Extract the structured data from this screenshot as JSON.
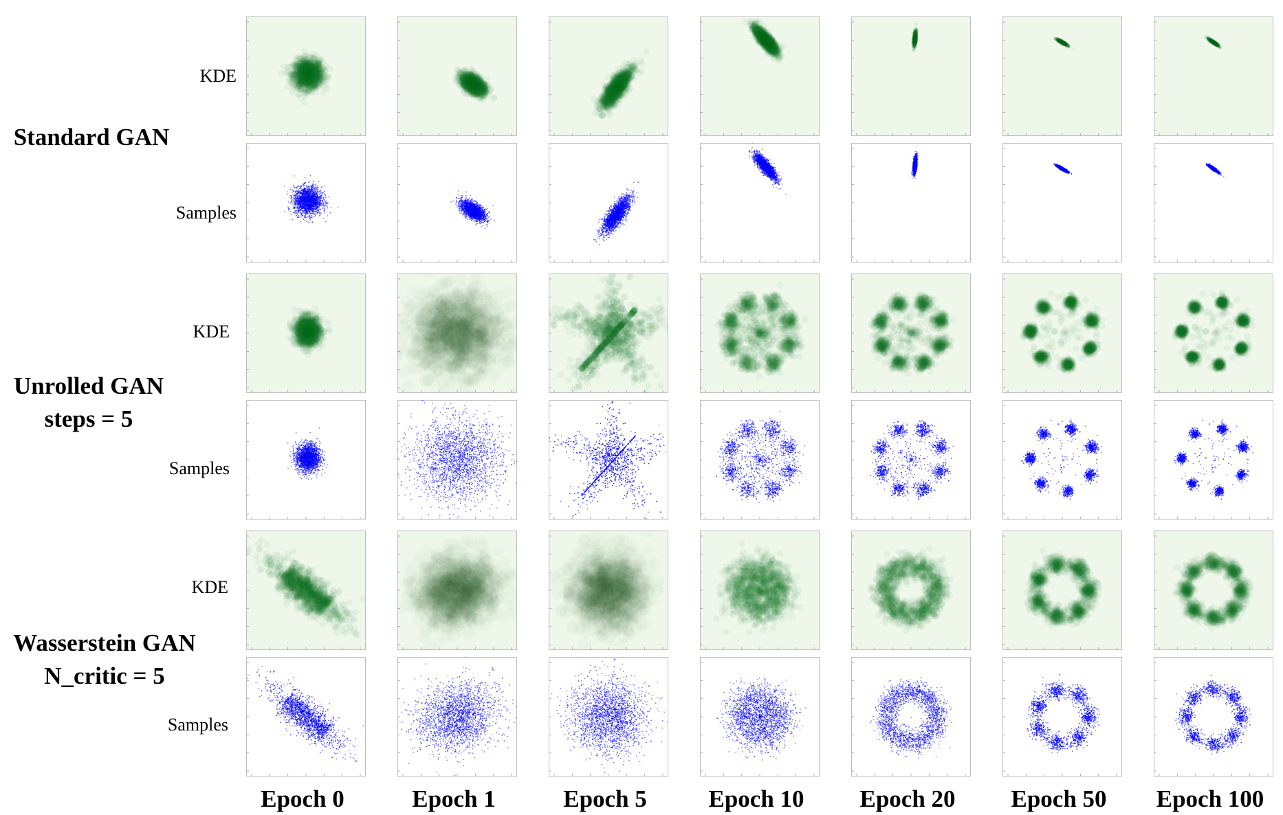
{
  "chart_data": {
    "type": "scatter",
    "title": "",
    "xlabel": "",
    "ylabel": "",
    "columns": [
      "Epoch 0",
      "Epoch 1",
      "Epoch 5",
      "Epoch 10",
      "Epoch 20",
      "Epoch 50",
      "Epoch 100"
    ],
    "row_types": [
      "KDE",
      "Samples"
    ],
    "colors": {
      "kde": "#1a7a2a",
      "kde_background": "#eef7ea",
      "samples": "#0000ff"
    },
    "xlim": [
      -3,
      3
    ],
    "ylim": [
      -3,
      3
    ],
    "groups": [
      {
        "name_lines": [
          "Standard GAN"
        ],
        "panels": [
          {
            "epoch": 0,
            "pattern": "blob",
            "center": [
              0.1,
              0.1
            ],
            "sx": 0.35,
            "sy": 0.35,
            "angle": 0
          },
          {
            "epoch": 1,
            "pattern": "blob",
            "center": [
              0.8,
              -0.4
            ],
            "sx": 0.35,
            "sy": 0.18,
            "angle": -35
          },
          {
            "epoch": 5,
            "pattern": "blob",
            "center": [
              0.4,
              -0.6
            ],
            "sx": 0.55,
            "sy": 0.18,
            "angle": 55
          },
          {
            "epoch": 10,
            "pattern": "blob",
            "center": [
              0.3,
              1.8
            ],
            "sx": 0.4,
            "sy": 0.12,
            "angle": -50
          },
          {
            "epoch": 20,
            "pattern": "blob",
            "center": [
              0.2,
              1.9
            ],
            "sx": 0.2,
            "sy": 0.04,
            "angle": 85
          },
          {
            "epoch": 50,
            "pattern": "blob",
            "center": [
              0.0,
              1.7
            ],
            "sx": 0.15,
            "sy": 0.03,
            "angle": -30
          },
          {
            "epoch": 100,
            "pattern": "blob",
            "center": [
              0.0,
              1.7
            ],
            "sx": 0.15,
            "sy": 0.03,
            "angle": -35
          }
        ]
      },
      {
        "name_lines": [
          "Unrolled GAN",
          "steps = 5"
        ],
        "panels": [
          {
            "epoch": 0,
            "pattern": "blob",
            "center": [
              0.1,
              0.1
            ],
            "sx": 0.3,
            "sy": 0.35,
            "angle": 0
          },
          {
            "epoch": 1,
            "pattern": "diffuse",
            "center": [
              0.0,
              0.0
            ],
            "sx": 1.1,
            "sy": 1.0,
            "angle": 0
          },
          {
            "epoch": 5,
            "pattern": "star",
            "center": [
              0.2,
              0.0
            ],
            "sx": 1.0,
            "sy": 0.9,
            "angle": 0
          },
          {
            "epoch": 10,
            "pattern": "modes",
            "radius": 1.6,
            "modes": 8,
            "spread": 0.22,
            "coverage": 0.7
          },
          {
            "epoch": 20,
            "pattern": "modes",
            "radius": 1.6,
            "modes": 8,
            "spread": 0.18,
            "coverage": 0.85
          },
          {
            "epoch": 50,
            "pattern": "modes",
            "radius": 1.6,
            "modes": 7,
            "spread": 0.14,
            "coverage": 0.95
          },
          {
            "epoch": 100,
            "pattern": "modes",
            "radius": 1.6,
            "modes": 7,
            "spread": 0.12,
            "coverage": 0.95
          }
        ]
      },
      {
        "name_lines": [
          "Wasserstein GAN",
          "N_critic = 5"
        ],
        "panels": [
          {
            "epoch": 0,
            "pattern": "bar",
            "center": [
              0.0,
              0.0
            ],
            "sx": 1.3,
            "sy": 0.35,
            "angle": -40
          },
          {
            "epoch": 1,
            "pattern": "diffuse",
            "center": [
              0.0,
              0.0
            ],
            "sx": 1.0,
            "sy": 0.8,
            "angle": 20
          },
          {
            "epoch": 5,
            "pattern": "diffuse",
            "center": [
              0.0,
              0.0
            ],
            "sx": 0.9,
            "sy": 0.9,
            "angle": 45
          },
          {
            "epoch": 10,
            "pattern": "ring",
            "radius": 1.0,
            "spread": 0.45,
            "modes": 0
          },
          {
            "epoch": 20,
            "pattern": "ring",
            "radius": 1.3,
            "spread": 0.28,
            "modes": 0
          },
          {
            "epoch": 50,
            "pattern": "ring",
            "radius": 1.35,
            "spread": 0.2,
            "modes": 7
          },
          {
            "epoch": 100,
            "pattern": "ring",
            "radius": 1.4,
            "spread": 0.18,
            "modes": 8
          }
        ]
      }
    ]
  }
}
